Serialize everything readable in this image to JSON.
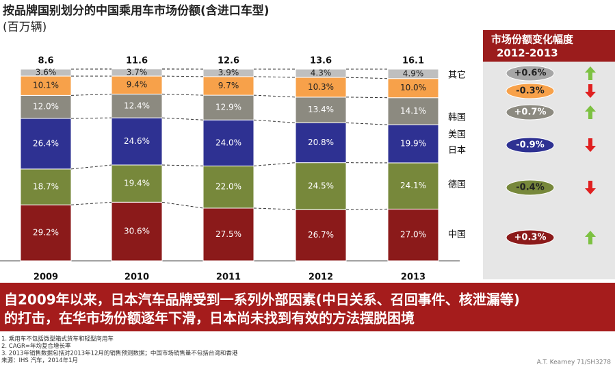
{
  "chart_data": {
    "type": "stacked_bar_100",
    "title": "按品牌国别划分的中国乘用车市场份额(含进口车型)",
    "subtitle": "(百万辆)",
    "categories": [
      "2009",
      "2010",
      "2011",
      "2012",
      "2013"
    ],
    "totals": [
      8.6,
      11.6,
      12.6,
      13.6,
      16.1
    ],
    "ylim": [
      0,
      100
    ],
    "series": [
      {
        "name": "中国",
        "color": "#8b1a1a",
        "values": [
          29.2,
          30.6,
          27.5,
          26.7,
          27.0
        ],
        "value_labels": [
          "29.2%",
          "30.6%",
          "27.5%",
          "26.7%",
          "27.0%"
        ],
        "change": 0.3,
        "change_label": "+0.3%"
      },
      {
        "name": "德国",
        "color": "#77883b",
        "values": [
          18.7,
          19.4,
          22.0,
          24.5,
          24.1
        ],
        "value_labels": [
          "18.7%",
          "19.4%",
          "22.0%",
          "24.5%",
          "24.1%"
        ],
        "change": -0.4,
        "change_label": "-0.4%"
      },
      {
        "name": "日本",
        "color": "#2e3192",
        "values": [
          26.4,
          24.6,
          24.0,
          20.8,
          19.9
        ],
        "value_labels": [
          "26.4%",
          "24.6%",
          "24.0%",
          "20.8%",
          "19.9%"
        ],
        "change": -0.9,
        "change_label": "-0.9%"
      },
      {
        "name": "美国",
        "color": "#8c8a80",
        "values": [
          12.0,
          12.4,
          12.9,
          13.4,
          14.1
        ],
        "value_labels": [
          "12.0%",
          "12.4%",
          "12.9%",
          "13.4%",
          "14.1%"
        ],
        "change": 0.7,
        "change_label": "+0.7%"
      },
      {
        "name": "韩国",
        "color": "#f7a14a",
        "values": [
          10.1,
          9.4,
          9.7,
          10.3,
          10.0
        ],
        "value_labels": [
          "10.1%",
          "9.4%",
          "9.7%",
          "10.3%",
          "10.0%"
        ],
        "change": -0.3,
        "change_label": "-0.3%"
      },
      {
        "name": "其它",
        "color": "#bfbfbf",
        "values": [
          3.6,
          3.7,
          3.9,
          4.3,
          4.9
        ],
        "value_labels": [
          "3.6%",
          "3.7%",
          "3.9%",
          "4.3%",
          "4.9%"
        ],
        "change": 0.6,
        "change_label": "+0.6%"
      }
    ],
    "panel_title": "市场份额变化幅度",
    "panel_period": "2012-2013",
    "banner": [
      "自2009年以来，日本汽车品牌受到一系列外部因素(中日关系、召回事件、核泄漏等)",
      "的打击，在华市场份额逐年下滑，日本尚未找到有效的方法摆脱困境"
    ],
    "footnotes": [
      "1. 乘用车不包括微型箱式货车和轻型商用车",
      "2. CAGR=年均复合增长率",
      "3. 2013年销售数据包括对2013年12月的销售预测数据；中国市场销售量不包括台湾和香港",
      "来源：IHS 汽车，2014年1月"
    ],
    "source": "A.T. Kearney 71/SH3278"
  }
}
